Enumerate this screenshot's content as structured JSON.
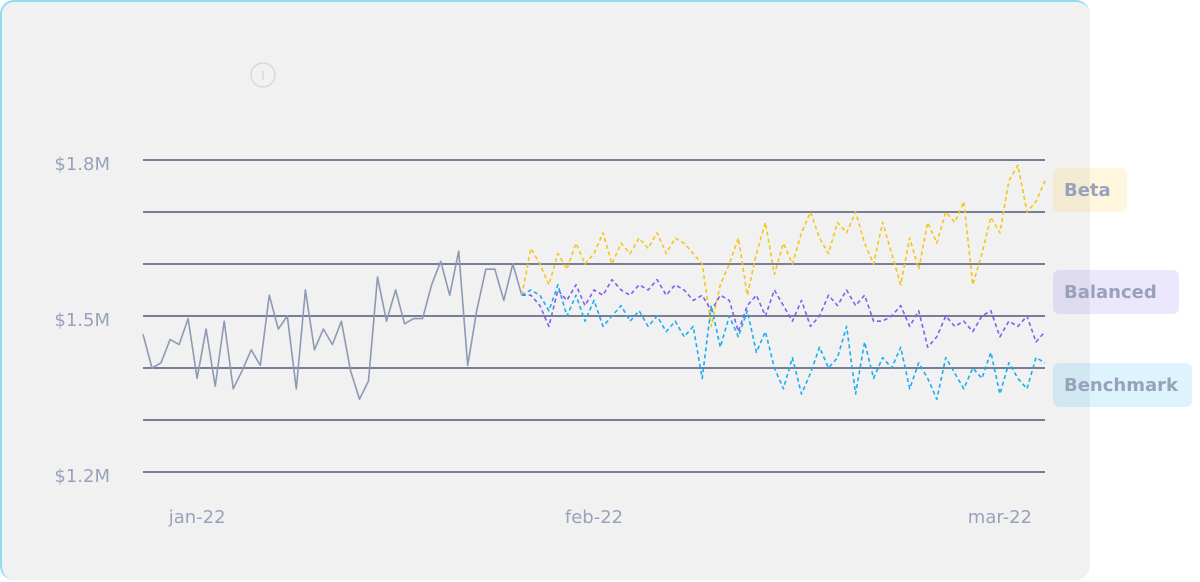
{
  "chart_data": {
    "type": "line",
    "categories": [
      null,
      null,
      null,
      null,
      null,
      null,
      "jan-22",
      null,
      null,
      null,
      null,
      null,
      null,
      null,
      null,
      null,
      null,
      null,
      null,
      null,
      null,
      null,
      null,
      null,
      null,
      null,
      null,
      null,
      null,
      null,
      null,
      null,
      null,
      null,
      null,
      null,
      null,
      null,
      null,
      null,
      null,
      null,
      null,
      null,
      null,
      null,
      null,
      null,
      null,
      null,
      "feb-22",
      null,
      null,
      null,
      null,
      null,
      null,
      null,
      null,
      null,
      null,
      null,
      null,
      null,
      null,
      null,
      null,
      null,
      null,
      null,
      null,
      null,
      null,
      null,
      null,
      null,
      null,
      null,
      null,
      null,
      null,
      null,
      null,
      null,
      null,
      null,
      null,
      null,
      null,
      null,
      null,
      null,
      null,
      null,
      null,
      "mar-22",
      null,
      null,
      null,
      null,
      null
    ],
    "series": [
      {
        "color": "#8e99b4",
        "dashed": false,
        "values": [
          1465000,
          1400000,
          1410000,
          1455000,
          1445000,
          1495000,
          1380000,
          1475000,
          1365000,
          1490000,
          1360000,
          1395000,
          1435000,
          1405000,
          1540000,
          1475000,
          1500000,
          1360000,
          1550000,
          1435000,
          1475000,
          1445000,
          1490000,
          1395000,
          1340000,
          1375000,
          1575000,
          1490000,
          1550000,
          1485000,
          1495000,
          1495000,
          1560000,
          1605000,
          1540000,
          1625000,
          1405000,
          1510000,
          1590000,
          1590000,
          1530000,
          1600000,
          1540000,
          null,
          null,
          null,
          null,
          null,
          null,
          null,
          null,
          null,
          null,
          null,
          null,
          null,
          null,
          null,
          null,
          null,
          null,
          null,
          null,
          null,
          null,
          null,
          null,
          null,
          null,
          null,
          null,
          null,
          null,
          null,
          null,
          null,
          null,
          null,
          null,
          null,
          null,
          null,
          null,
          null,
          null,
          null,
          null,
          null,
          null,
          null,
          null,
          null,
          null,
          null,
          null,
          null,
          null,
          null,
          null,
          null,
          null
        ]
      },
      {
        "name": "Beta",
        "color": "#f5c518",
        "dashed": true,
        "values": [
          null,
          null,
          null,
          null,
          null,
          null,
          null,
          null,
          null,
          null,
          null,
          null,
          null,
          null,
          null,
          null,
          null,
          null,
          null,
          null,
          null,
          null,
          null,
          null,
          null,
          null,
          null,
          null,
          null,
          null,
          null,
          null,
          null,
          null,
          null,
          null,
          null,
          null,
          null,
          null,
          null,
          null,
          1540000,
          1630000,
          1600000,
          1560000,
          1620000,
          1590000,
          1640000,
          1600000,
          1620000,
          1660000,
          1600000,
          1640000,
          1620000,
          1650000,
          1630000,
          1660000,
          1620000,
          1650000,
          1640000,
          1620000,
          1600000,
          1480000,
          1560000,
          1600000,
          1650000,
          1540000,
          1620000,
          1680000,
          1580000,
          1640000,
          1600000,
          1660000,
          1700000,
          1650000,
          1620000,
          1680000,
          1660000,
          1700000,
          1640000,
          1600000,
          1680000,
          1620000,
          1560000,
          1650000,
          1590000,
          1680000,
          1640000,
          1700000,
          1680000,
          1720000,
          1560000,
          1620000,
          1690000,
          1660000,
          1760000,
          1790000,
          1700000,
          1720000,
          1760000
        ]
      },
      {
        "name": "Balanced",
        "color": "#7b61f0",
        "dashed": true,
        "values": [
          null,
          null,
          null,
          null,
          null,
          null,
          null,
          null,
          null,
          null,
          null,
          null,
          null,
          null,
          null,
          null,
          null,
          null,
          null,
          null,
          null,
          null,
          null,
          null,
          null,
          null,
          null,
          null,
          null,
          null,
          null,
          null,
          null,
          null,
          null,
          null,
          null,
          null,
          null,
          null,
          null,
          null,
          1540000,
          1540000,
          1520000,
          1480000,
          1550000,
          1530000,
          1560000,
          1520000,
          1550000,
          1540000,
          1570000,
          1550000,
          1540000,
          1560000,
          1550000,
          1570000,
          1540000,
          1560000,
          1550000,
          1530000,
          1540000,
          1510000,
          1540000,
          1530000,
          1470000,
          1520000,
          1540000,
          1500000,
          1550000,
          1520000,
          1490000,
          1530000,
          1480000,
          1500000,
          1540000,
          1520000,
          1550000,
          1520000,
          1540000,
          1490000,
          1490000,
          1500000,
          1520000,
          1480000,
          1510000,
          1440000,
          1460000,
          1500000,
          1480000,
          1490000,
          1470000,
          1500000,
          1510000,
          1460000,
          1490000,
          1480000,
          1500000,
          1450000,
          1470000
        ]
      },
      {
        "name": "Benchmark",
        "color": "#1aaef0",
        "dashed": true,
        "values": [
          null,
          null,
          null,
          null,
          null,
          null,
          null,
          null,
          null,
          null,
          null,
          null,
          null,
          null,
          null,
          null,
          null,
          null,
          null,
          null,
          null,
          null,
          null,
          null,
          null,
          null,
          null,
          null,
          null,
          null,
          null,
          null,
          null,
          null,
          null,
          null,
          null,
          null,
          null,
          null,
          null,
          null,
          1540000,
          1550000,
          1540000,
          1510000,
          1560000,
          1500000,
          1540000,
          1490000,
          1530000,
          1480000,
          1500000,
          1520000,
          1490000,
          1510000,
          1480000,
          1500000,
          1470000,
          1490000,
          1460000,
          1480000,
          1380000,
          1520000,
          1440000,
          1500000,
          1460000,
          1510000,
          1430000,
          1470000,
          1400000,
          1360000,
          1420000,
          1350000,
          1390000,
          1440000,
          1400000,
          1420000,
          1480000,
          1350000,
          1450000,
          1380000,
          1420000,
          1400000,
          1440000,
          1360000,
          1410000,
          1380000,
          1340000,
          1420000,
          1390000,
          1360000,
          1400000,
          1380000,
          1430000,
          1350000,
          1410000,
          1380000,
          1360000,
          1420000,
          1410000
        ]
      }
    ],
    "ylim": [
      1200000,
      1800000
    ],
    "yticks": [
      {
        "value": 1200000,
        "label": "$1.2M"
      },
      {
        "value": 1500000,
        "label": "$1.5M"
      },
      {
        "value": 1800000,
        "label": "$1.8M"
      }
    ],
    "minor_yticks": [
      1300000,
      1400000,
      1600000,
      1700000
    ],
    "grid": true
  }
}
